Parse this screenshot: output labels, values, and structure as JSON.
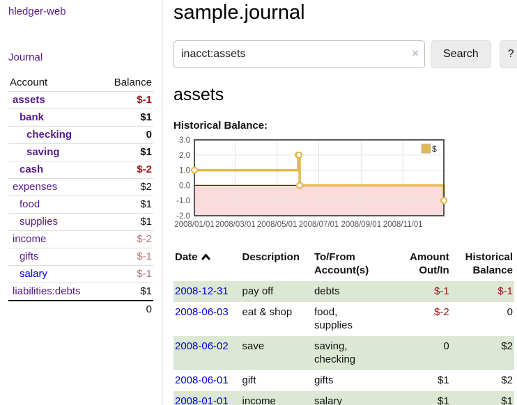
{
  "colors": {
    "link_purple": "#551a8b",
    "link_blue": "#0000dd",
    "negative_dark_red": "#9d1212",
    "negative_light_red": "#bc7777",
    "row_stripe_green": "#dde8d4",
    "chart_line_gold": "#e3b84e",
    "chart_negative_region_pink": "#fbdbdb",
    "chart_zero_line_red": "#aa0000",
    "chart_border_gray": "#555555",
    "chart_grid_gray": "#e3e3e3"
  },
  "sidebar": {
    "brand": "hledger-web",
    "nav": {
      "journal": "Journal"
    },
    "accounts_table": {
      "header": {
        "account": "Account",
        "balance": "Balance"
      },
      "rows": [
        {
          "label": "assets",
          "balance": "$-1"
        },
        {
          "label": "bank",
          "balance": "$1"
        },
        {
          "label": "checking",
          "balance": "0"
        },
        {
          "label": "saving",
          "balance": "$1"
        },
        {
          "label": "cash",
          "balance": "$-2"
        },
        {
          "label": "expenses",
          "balance": "$2"
        },
        {
          "label": "food",
          "balance": "$1"
        },
        {
          "label": "supplies",
          "balance": "$1"
        },
        {
          "label": "income",
          "balance": "$-2"
        },
        {
          "label": "gifts",
          "balance": "$-1"
        },
        {
          "label": "salary",
          "balance": "$-1"
        },
        {
          "label": "liabilities:debts",
          "balance": "$1"
        }
      ],
      "total": "0"
    }
  },
  "main": {
    "title": "sample.journal",
    "search": {
      "value": "inacct:assets",
      "clear_icon": "×",
      "search_button": "Search",
      "help_button": "?"
    },
    "account_heading": "assets",
    "chart_label": "Historical Balance:",
    "chart_data": {
      "type": "line",
      "style": "step-after",
      "title": "Historical Balance",
      "legend": "$",
      "ylim": [
        -2,
        3
      ],
      "yticks": [
        3,
        2,
        1,
        0,
        -1,
        -2
      ],
      "ytick_labels": [
        "3.0",
        "2.0",
        "1.0",
        "0.0",
        "-1.0",
        "-2.0"
      ],
      "xrange": [
        "2008-01-01",
        "2008-12-31"
      ],
      "xticks": [
        {
          "label": "2008/01/01",
          "date": "2008-01-01"
        },
        {
          "label": "2008/03/01",
          "date": "2008-03-01"
        },
        {
          "label": "2008/05/01",
          "date": "2008-05-01"
        },
        {
          "label": "2008/07/01",
          "date": "2008-07-01"
        },
        {
          "label": "2008/09/01",
          "date": "2008-09-01"
        },
        {
          "label": "2008/11/01",
          "date": "2008-11-01"
        }
      ],
      "points": [
        {
          "date": "2008-01-01",
          "value": 1
        },
        {
          "date": "2008-06-01",
          "value": 2
        },
        {
          "date": "2008-06-02",
          "value": 2
        },
        {
          "date": "2008-06-03",
          "value": 0
        },
        {
          "date": "2008-12-31",
          "value": -1
        }
      ]
    },
    "register": {
      "headers": {
        "date": "Date",
        "description": "Description",
        "account_line1": "To/From",
        "account_line2": "Account(s)",
        "amount_line1": "Amount",
        "amount_line2": "Out/In",
        "balance_line1": "Historical",
        "balance_line2": "Balance"
      },
      "rows": [
        {
          "date": "2008-12-31",
          "description": "pay off",
          "accounts": "debts",
          "amount": "$-1",
          "balance": "$-1"
        },
        {
          "date": "2008-06-03",
          "description": "eat & shop",
          "accounts": "food, supplies",
          "amount": "$-2",
          "balance": "0"
        },
        {
          "date": "2008-06-02",
          "description": "save",
          "accounts": "saving, checking",
          "amount": "0",
          "balance": "$2"
        },
        {
          "date": "2008-06-01",
          "description": "gift",
          "accounts": "gifts",
          "amount": "$1",
          "balance": "$2"
        },
        {
          "date": "2008-01-01",
          "description": "income",
          "accounts": "salary",
          "amount": "$1",
          "balance": "$1"
        }
      ]
    }
  }
}
